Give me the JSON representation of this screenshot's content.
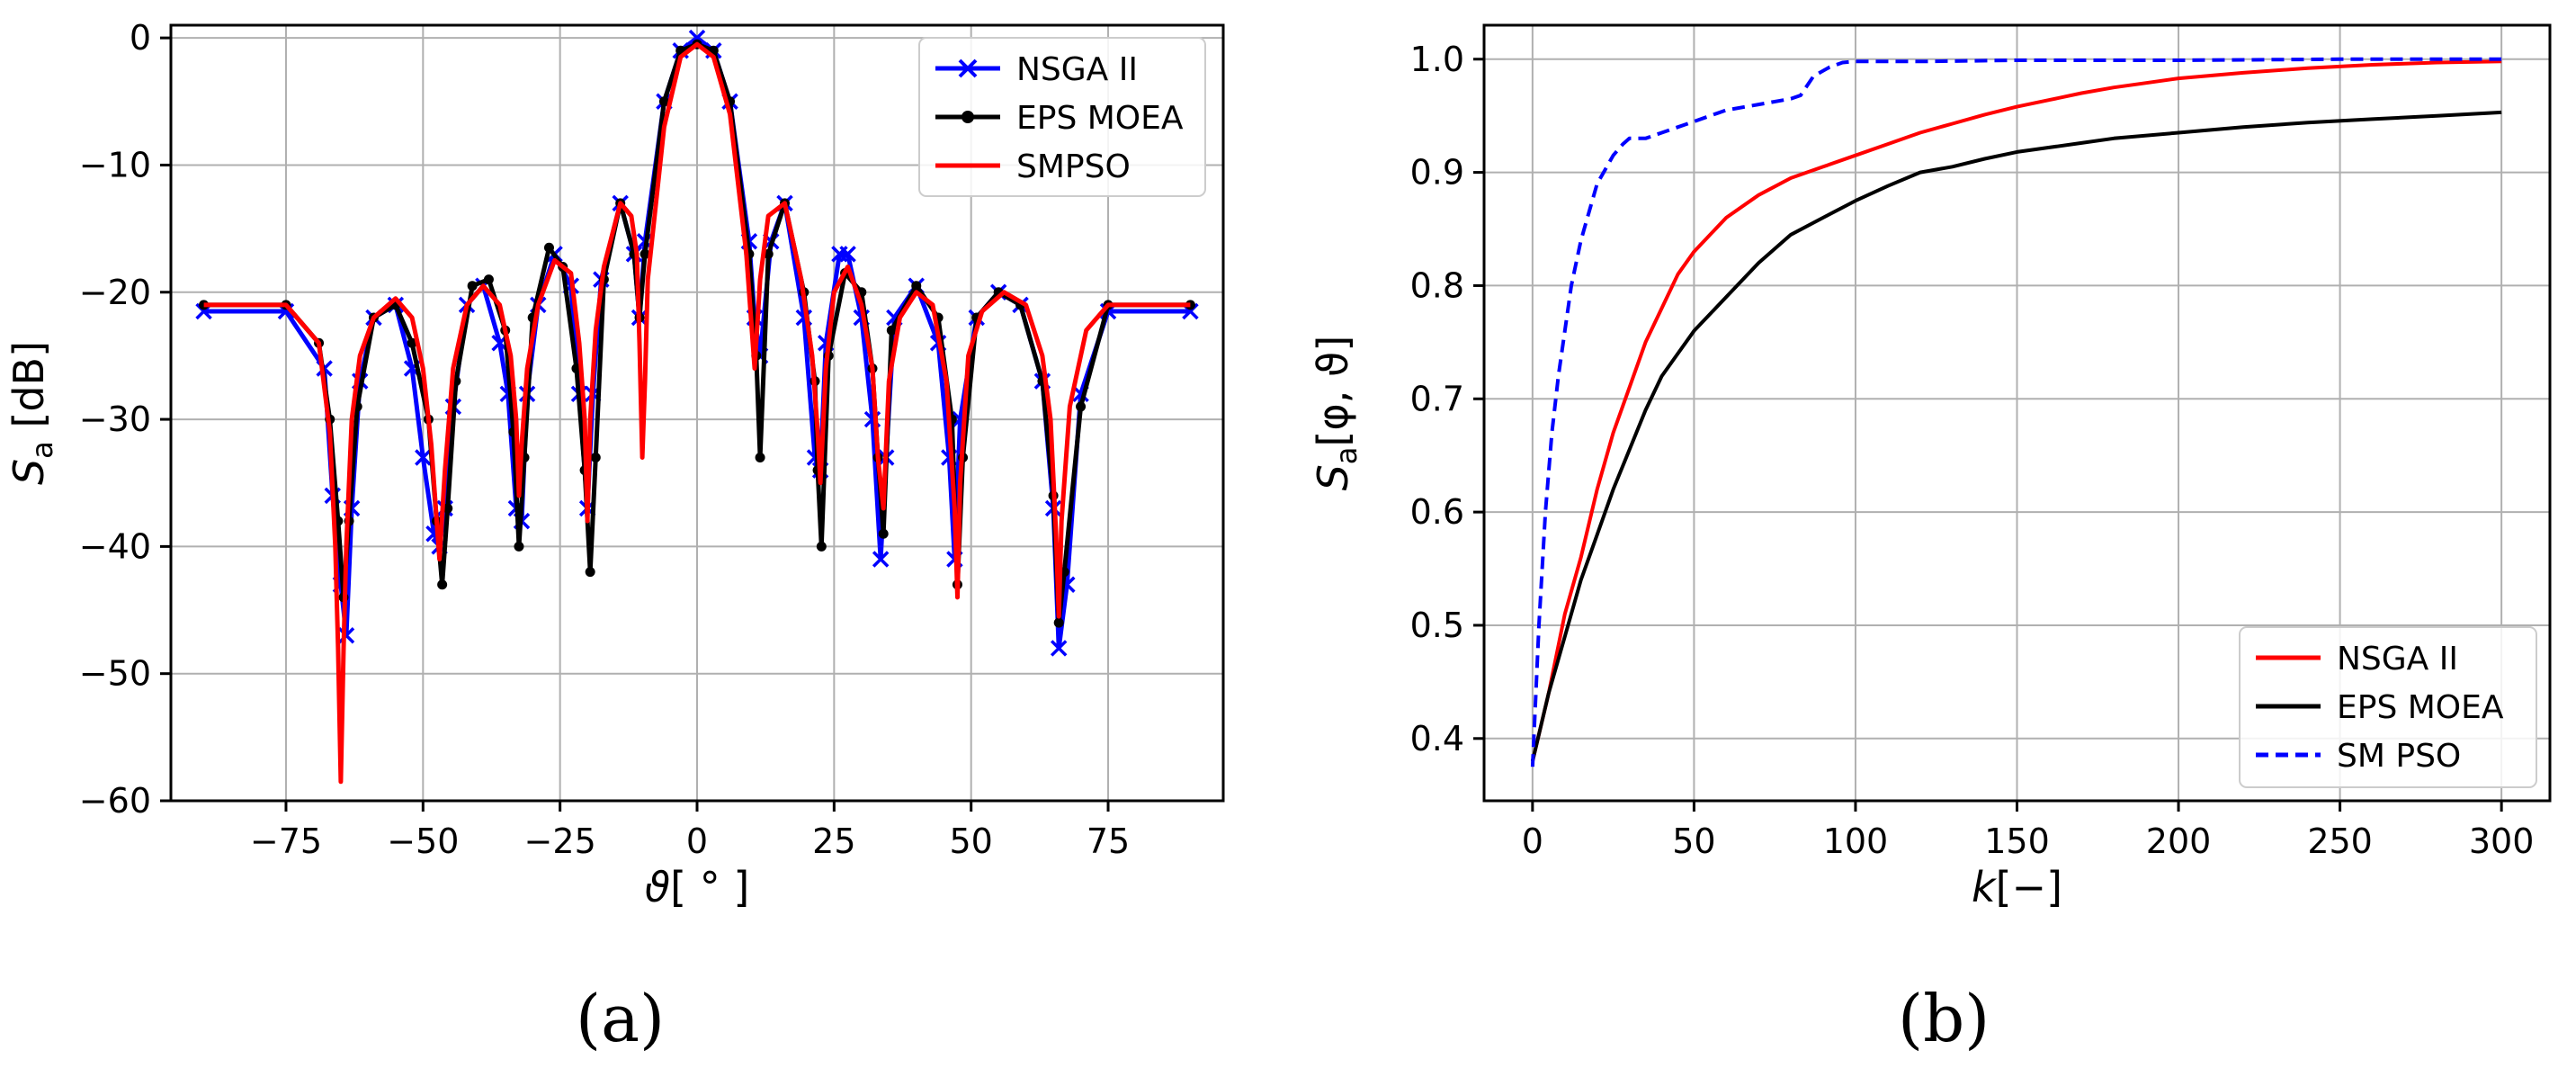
{
  "captions": {
    "a": "(a)",
    "b": "(b)"
  },
  "chart_data": [
    {
      "id": "a",
      "type": "line",
      "title": "",
      "xlabel_symbol": "ϑ",
      "xlabel_unit": "[ ° ]",
      "ylabel_symbol": "S",
      "ylabel_sub": "a",
      "ylabel_unit": " [dB]",
      "xlim": [
        -96,
        96
      ],
      "ylim": [
        -60,
        1
      ],
      "xticks": [
        -75,
        -50,
        -25,
        0,
        25,
        50,
        75
      ],
      "xtick_labels": [
        "−75",
        "−50",
        "−25",
        "0",
        "25",
        "50",
        "75"
      ],
      "yticks": [
        0,
        -10,
        -20,
        -30,
        -40,
        -50,
        -60
      ],
      "ytick_labels": [
        "0",
        "−10",
        "−20",
        "−30",
        "−40",
        "−50",
        "−60"
      ],
      "grid": true,
      "legend_position": "top-right",
      "legend": [
        "NSGA II",
        "EPS MOEA",
        "SMPSO"
      ],
      "series": [
        {
          "name": "NSGA II",
          "color": "#0000ff",
          "marker": "x",
          "x": [
            -90,
            -75,
            -68,
            -66.5,
            -65,
            -64,
            -63,
            -61.5,
            -59,
            -55,
            -52,
            -50,
            -48,
            -47,
            -46,
            -44.5,
            -42,
            -39,
            -36,
            -34.5,
            -33,
            -32,
            -31,
            -29,
            -26,
            -23,
            -21.5,
            -20,
            -19,
            -17.5,
            -14,
            -11.5,
            -10.5,
            -9.5,
            -6,
            -3,
            0,
            3,
            6,
            9.5,
            10.5,
            11.5,
            13.5,
            16,
            19.5,
            21.5,
            22.5,
            23.5,
            26,
            27.5,
            30,
            32,
            33.5,
            34.5,
            36,
            40,
            44,
            46,
            47,
            48,
            51,
            55,
            59,
            63,
            65,
            66,
            67.5,
            70,
            75,
            90
          ],
          "y": [
            -21.5,
            -21.5,
            -26,
            -36,
            -43,
            -47,
            -37,
            -27,
            -22,
            -21,
            -26,
            -33,
            -39,
            -40,
            -37,
            -29,
            -21,
            -19.5,
            -24,
            -28,
            -37,
            -38,
            -28,
            -21,
            -17,
            -19.5,
            -28,
            -37,
            -28,
            -19,
            -13,
            -17,
            -22,
            -16,
            -5,
            -1,
            0,
            -1,
            -5,
            -16,
            -22,
            -25,
            -16,
            -13,
            -22,
            -33,
            -34,
            -24,
            -17,
            -17,
            -22,
            -30,
            -41,
            -33,
            -22,
            -19.5,
            -24,
            -33,
            -41,
            -30,
            -22,
            -20,
            -21,
            -27,
            -37,
            -48,
            -43,
            -28,
            -21.5,
            -21.5
          ]
        },
        {
          "name": "EPS MOEA",
          "color": "#000000",
          "marker": "dot",
          "x": [
            -90,
            -75,
            -69,
            -67,
            -65.5,
            -64.5,
            -63.5,
            -62,
            -59,
            -55,
            -52,
            -49,
            -47.5,
            -46.5,
            -45.5,
            -44,
            -41,
            -38,
            -35,
            -33.5,
            -32.5,
            -31.5,
            -30,
            -27,
            -24.5,
            -22,
            -20.5,
            -19.5,
            -18.5,
            -17,
            -14,
            -11.5,
            -10.5,
            -9.5,
            -6,
            -3,
            0,
            3,
            6,
            9.5,
            10.8,
            11.5,
            13,
            16,
            19.5,
            21.5,
            22,
            22.7,
            24,
            27,
            30,
            32,
            33,
            34,
            35.5,
            40,
            44,
            46.5,
            47.5,
            48.5,
            51,
            55,
            59,
            63,
            65,
            66,
            67,
            70,
            75,
            90
          ],
          "y": [
            -21,
            -21,
            -24,
            -30,
            -38,
            -44,
            -38,
            -29,
            -22,
            -21,
            -24,
            -30,
            -38,
            -43,
            -37,
            -27,
            -19.5,
            -19,
            -23,
            -31,
            -40,
            -33,
            -22,
            -16.5,
            -18,
            -26,
            -34,
            -42,
            -33,
            -19,
            -13,
            -17,
            -22,
            -17,
            -5,
            -1,
            -0.5,
            -1,
            -5,
            -17,
            -25,
            -33,
            -17,
            -13,
            -20,
            -27,
            -34,
            -40,
            -25,
            -18.5,
            -20,
            -26,
            -33,
            -39,
            -23,
            -19.5,
            -22,
            -30,
            -43,
            -33,
            -22,
            -20,
            -21,
            -27,
            -36,
            -46,
            -42,
            -29,
            -21,
            -21
          ]
        },
        {
          "name": "SMPSO",
          "color": "#ff0000",
          "marker": "none",
          "x": [
            -90,
            -75,
            -69,
            -67,
            -66,
            -65.5,
            -65,
            -64.5,
            -64,
            -63,
            -61.5,
            -59,
            -55,
            -52,
            -50,
            -48.5,
            -47.5,
            -47,
            -46,
            -44.5,
            -42,
            -39,
            -36,
            -34,
            -33,
            -32.5,
            -32,
            -31,
            -29,
            -26,
            -23,
            -21.5,
            -20.5,
            -20,
            -19.5,
            -18.5,
            -17,
            -14,
            -12,
            -11,
            -10.5,
            -10,
            -9.5,
            -9,
            -6,
            -3,
            0,
            3,
            6,
            9,
            10.5,
            11.5,
            13,
            16,
            19,
            21,
            22,
            22.5,
            23.5,
            25,
            27.5,
            30,
            32,
            33,
            34,
            35,
            37,
            40,
            43,
            45.5,
            47,
            47.5,
            48,
            49.5,
            52,
            56,
            60,
            63,
            64.5,
            65.5,
            66,
            66.5,
            68,
            71,
            75,
            90
          ],
          "y": [
            -21,
            -21,
            -24,
            -31,
            -40,
            -48,
            -58.5,
            -48,
            -40,
            -30,
            -25,
            -22,
            -20.5,
            -22,
            -26,
            -32,
            -38,
            -41,
            -34,
            -26,
            -21,
            -19.5,
            -21,
            -25,
            -30,
            -36,
            -32,
            -26,
            -21,
            -17.5,
            -18.5,
            -24,
            -30,
            -38,
            -30,
            -23,
            -18,
            -13,
            -14,
            -17,
            -24,
            -33,
            -27,
            -19,
            -7,
            -1.5,
            -0.5,
            -1.5,
            -6,
            -17,
            -26,
            -19,
            -14,
            -13,
            -19,
            -25,
            -31,
            -35,
            -26,
            -20,
            -18,
            -21,
            -26,
            -33,
            -37,
            -27,
            -22,
            -20,
            -21,
            -27,
            -37,
            -44,
            -35,
            -25,
            -21.5,
            -20,
            -21,
            -25,
            -30,
            -39,
            -45.5,
            -38,
            -29,
            -23,
            -21,
            -21
          ]
        }
      ]
    },
    {
      "id": "b",
      "type": "line",
      "title": "",
      "xlabel_symbol": "k",
      "xlabel_unit": "[−]",
      "ylabel_symbol": "S",
      "ylabel_sub": "a",
      "ylabel_unit": "[φ, ϑ]",
      "xlim": [
        -15,
        315
      ],
      "ylim": [
        0.345,
        1.03
      ],
      "xticks": [
        0,
        50,
        100,
        150,
        200,
        250,
        300
      ],
      "xtick_labels": [
        "0",
        "50",
        "100",
        "150",
        "200",
        "250",
        "300"
      ],
      "yticks": [
        0.4,
        0.5,
        0.6,
        0.7,
        0.8,
        0.9,
        1.0
      ],
      "ytick_labels": [
        "0.4",
        "0.5",
        "0.6",
        "0.7",
        "0.8",
        "0.9",
        "1.0"
      ],
      "grid": true,
      "legend_position": "bottom-right",
      "legend": [
        "NSGA II",
        "EPS MOEA",
        "SM PSO"
      ],
      "series": [
        {
          "name": "NSGA II",
          "color": "#ff0000",
          "style": "solid",
          "x": [
            0,
            5,
            10,
            15,
            20,
            25,
            30,
            35,
            40,
            45,
            50,
            60,
            70,
            80,
            90,
            100,
            110,
            120,
            130,
            140,
            150,
            160,
            170,
            180,
            190,
            200,
            220,
            240,
            260,
            280,
            300
          ],
          "y": [
            0.38,
            0.44,
            0.51,
            0.56,
            0.62,
            0.67,
            0.71,
            0.75,
            0.78,
            0.81,
            0.83,
            0.86,
            0.88,
            0.895,
            0.905,
            0.915,
            0.925,
            0.935,
            0.943,
            0.951,
            0.958,
            0.964,
            0.97,
            0.975,
            0.979,
            0.983,
            0.988,
            0.992,
            0.995,
            0.997,
            0.998
          ]
        },
        {
          "name": "EPS MOEA",
          "color": "#000000",
          "style": "solid",
          "x": [
            0,
            5,
            10,
            15,
            20,
            25,
            30,
            35,
            40,
            45,
            50,
            60,
            70,
            80,
            90,
            100,
            110,
            120,
            130,
            140,
            150,
            160,
            170,
            180,
            200,
            220,
            240,
            260,
            280,
            300
          ],
          "y": [
            0.38,
            0.44,
            0.49,
            0.54,
            0.58,
            0.62,
            0.655,
            0.69,
            0.72,
            0.74,
            0.76,
            0.79,
            0.82,
            0.845,
            0.86,
            0.875,
            0.888,
            0.9,
            0.905,
            0.912,
            0.918,
            0.922,
            0.926,
            0.93,
            0.935,
            0.94,
            0.944,
            0.947,
            0.95,
            0.953
          ]
        },
        {
          "name": "SM PSO",
          "color": "#0000ff",
          "style": "dashed",
          "x": [
            0,
            2,
            4,
            6,
            8,
            10,
            12,
            15,
            18,
            20,
            22,
            25,
            28,
            30,
            35,
            40,
            50,
            60,
            70,
            80,
            83,
            87,
            92,
            96,
            100,
            120,
            150,
            200,
            250,
            300
          ],
          "y": [
            0.375,
            0.5,
            0.6,
            0.67,
            0.72,
            0.76,
            0.8,
            0.84,
            0.87,
            0.89,
            0.9,
            0.915,
            0.925,
            0.93,
            0.93,
            0.935,
            0.945,
            0.955,
            0.96,
            0.965,
            0.968,
            0.985,
            0.993,
            0.997,
            0.998,
            0.998,
            0.999,
            0.999,
            1.0,
            1.0
          ]
        }
      ]
    }
  ]
}
